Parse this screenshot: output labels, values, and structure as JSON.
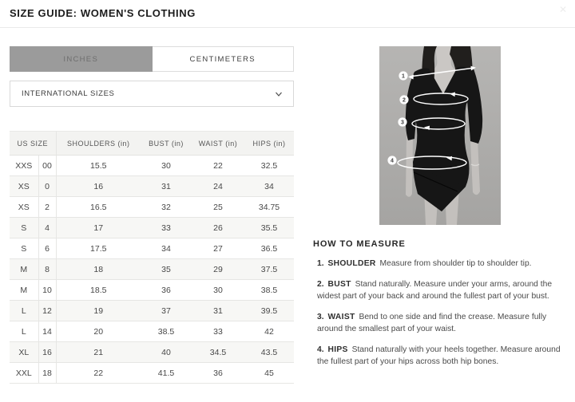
{
  "page": {
    "title": "SIZE GUIDE: WOMEN'S CLOTHING"
  },
  "header": {
    "close_icon": "✕"
  },
  "tabs": [
    {
      "label": "INCHES",
      "active": true
    },
    {
      "label": "CENTIMETERS",
      "active": false
    }
  ],
  "dropdown": {
    "value": "INTERNATIONAL SIZES",
    "chevron_icon": "chevron-down"
  },
  "table": {
    "headers": [
      "US SIZE",
      "SHOULDERS (in)",
      "BUST (in)",
      "WAIST (in)",
      "HIPS (in)"
    ],
    "rows": [
      {
        "size": "XXS",
        "us": "00",
        "shoulders": "15.5",
        "bust": "30",
        "waist": "22",
        "hips": "32.5"
      },
      {
        "size": "XS",
        "us": "0",
        "shoulders": "16",
        "bust": "31",
        "waist": "24",
        "hips": "34"
      },
      {
        "size": "XS",
        "us": "2",
        "shoulders": "16.5",
        "bust": "32",
        "waist": "25",
        "hips": "34.75"
      },
      {
        "size": "S",
        "us": "4",
        "shoulders": "17",
        "bust": "33",
        "waist": "26",
        "hips": "35.5"
      },
      {
        "size": "S",
        "us": "6",
        "shoulders": "17.5",
        "bust": "34",
        "waist": "27",
        "hips": "36.5"
      },
      {
        "size": "M",
        "us": "8",
        "shoulders": "18",
        "bust": "35",
        "waist": "29",
        "hips": "37.5"
      },
      {
        "size": "M",
        "us": "10",
        "shoulders": "18.5",
        "bust": "36",
        "waist": "30",
        "hips": "38.5"
      },
      {
        "size": "L",
        "us": "12",
        "shoulders": "19",
        "bust": "37",
        "waist": "31",
        "hips": "39.5"
      },
      {
        "size": "L",
        "us": "14",
        "shoulders": "20",
        "bust": "38.5",
        "waist": "33",
        "hips": "42"
      },
      {
        "size": "XL",
        "us": "16",
        "shoulders": "21",
        "bust": "40",
        "waist": "34.5",
        "hips": "43.5"
      },
      {
        "size": "XXL",
        "us": "18",
        "shoulders": "22",
        "bust": "41.5",
        "waist": "36",
        "hips": "45"
      }
    ]
  },
  "figure": {
    "markers": [
      "1",
      "2",
      "3",
      "4"
    ]
  },
  "measure_guide": {
    "title": "HOW TO MEASURE",
    "items": [
      {
        "num": "1.",
        "label": "SHOULDER",
        "text": "Measure from shoulder tip to shoulder tip."
      },
      {
        "num": "2.",
        "label": "BUST",
        "text": "Stand naturally. Measure under your arms, around the widest part of your back and around the fullest part of your bust."
      },
      {
        "num": "3.",
        "label": "WAIST",
        "text": "Bend to one side and find the crease. Measure fully around the smallest part of your waist."
      },
      {
        "num": "4.",
        "label": "HIPS",
        "text": "Stand naturally with your heels together. Measure around the fullest part of your hips across both hip bones."
      }
    ]
  },
  "colors": {
    "active_tab_bg": "#9b9b9b",
    "table_header_bg": "#f3f3f1",
    "zebra_row_bg": "#f7f7f5",
    "dress_black": "#161616",
    "photo_bg_gray": "#aeadab"
  }
}
